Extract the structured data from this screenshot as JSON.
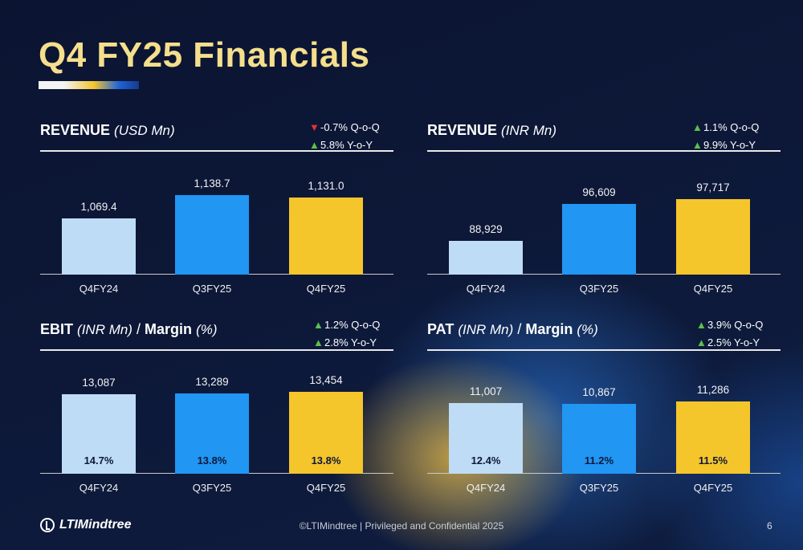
{
  "slide": {
    "title": "Q4 FY25 Financials",
    "footer": "©LTIMindtree | Privileged and Confidential 2025",
    "page_number": "6",
    "logo_text": "LTIMindtree"
  },
  "colors": {
    "q4fy24_bar": "#bfdcf7",
    "q3fy25_bar": "#2196f3",
    "q4fy25_bar": "#f5c52c",
    "title": "#f5df8c",
    "up": "#5ec04a",
    "down": "#e23232"
  },
  "chart_data": [
    {
      "type": "bar",
      "title": "REVENUE",
      "unit": "(USD Mn)",
      "categories": [
        "Q4FY24",
        "Q3FY25",
        "Q4FY25"
      ],
      "values": [
        1069.4,
        1138.7,
        1131.0
      ],
      "value_labels": [
        "1,069.4",
        "1,138.7",
        "1,131.0"
      ],
      "ylim": [
        900,
        1160
      ],
      "changes": [
        {
          "direction": "down",
          "text": "-0.7% Q-o-Q"
        },
        {
          "direction": "up",
          "text": "5.8% Y-o-Y"
        }
      ]
    },
    {
      "type": "bar",
      "title": "REVENUE",
      "unit": "(INR Mn)",
      "categories": [
        "Q4FY24",
        "Q3FY25",
        "Q4FY25"
      ],
      "values": [
        88929,
        96609,
        97717
      ],
      "value_labels": [
        "88,929",
        "96,609",
        "97,717"
      ],
      "ylim": [
        82000,
        100000
      ],
      "changes": [
        {
          "direction": "up",
          "text": "1.1% Q-o-Q"
        },
        {
          "direction": "up",
          "text": "9.9% Y-o-Y"
        }
      ]
    },
    {
      "type": "bar",
      "title": "EBIT",
      "unit": "(INR Mn)",
      "title_suffix": "Margin",
      "suffix_unit": "(%)",
      "categories": [
        "Q4FY24",
        "Q3FY25",
        "Q4FY25"
      ],
      "values": [
        13087,
        13289,
        13454
      ],
      "value_labels": [
        "13,087",
        "13,289",
        "13,454"
      ],
      "margins": [
        "14.7%",
        "13.8%",
        "13.8%"
      ],
      "ylim": [
        0,
        14300
      ],
      "changes": [
        {
          "direction": "up",
          "text": "1.2% Q-o-Q"
        },
        {
          "direction": "up",
          "text": "2.8% Y-o-Y"
        }
      ]
    },
    {
      "type": "bar",
      "title": "PAT",
      "unit": "(INR Mn)",
      "title_suffix": "Margin",
      "suffix_unit": "(%)",
      "categories": [
        "Q4FY24",
        "Q3FY25",
        "Q4FY25"
      ],
      "values": [
        11007,
        10867,
        11286
      ],
      "value_labels": [
        "11,007",
        "10,867",
        "11,286"
      ],
      "margins": [
        "12.4%",
        "11.2%",
        "11.5%"
      ],
      "ylim": [
        0,
        13500
      ],
      "changes": [
        {
          "direction": "up",
          "text": "3.9% Q-o-Q"
        },
        {
          "direction": "up",
          "text": "2.5% Y-o-Y"
        }
      ]
    }
  ]
}
